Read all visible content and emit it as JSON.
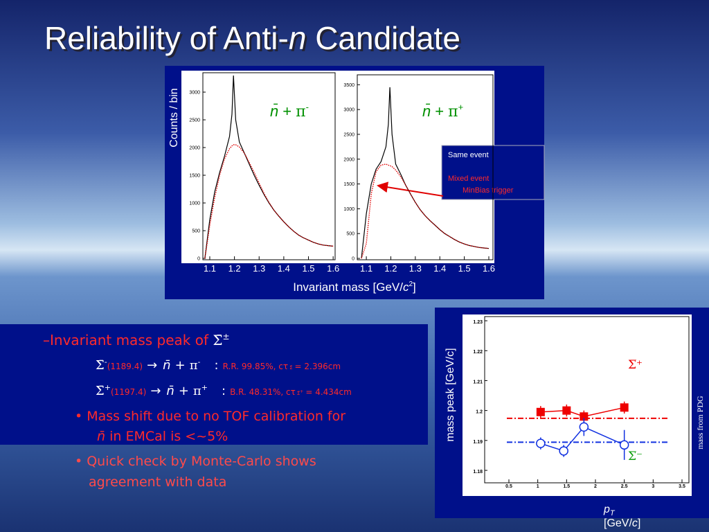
{
  "title": {
    "before": "Reliability of Anti-",
    "italic": "n",
    "after": " Candidate"
  },
  "figure_labels": {
    "y_label": "Counts / bin",
    "x_label": {
      "before": "Invariant mass [GeV/",
      "c": "c",
      "sup": "2",
      "after": "]"
    },
    "peak_y_label": "mass peak [GeV/c]",
    "pdg_label": "mass from PDG",
    "peak_x_label": {
      "p": "p",
      "sub": "T",
      "before": "[GeV/",
      "c": "c",
      "after": "]"
    }
  },
  "chart_data": [
    {
      "type": "line",
      "annotation": {
        "n": "n̄",
        "plus": "+",
        "pi": "π",
        "sup": "-"
      },
      "x": [
        1.08,
        1.1,
        1.12,
        1.14,
        1.16,
        1.18,
        1.19,
        1.196,
        1.205,
        1.22,
        1.24,
        1.26,
        1.28,
        1.3,
        1.32,
        1.34,
        1.36,
        1.38,
        1.4,
        1.42,
        1.44,
        1.46,
        1.48,
        1.5,
        1.52,
        1.54,
        1.56,
        1.58,
        1.6
      ],
      "series": [
        {
          "color": "#000000",
          "line_style": "solid",
          "values": [
            0,
            700,
            1200,
            1550,
            1850,
            2200,
            2600,
            3300,
            2500,
            2100,
            1900,
            1700,
            1500,
            1320,
            1150,
            1000,
            870,
            760,
            660,
            570,
            490,
            420,
            370,
            330,
            290,
            260,
            240,
            230,
            220
          ]
        },
        {
          "color": "#e00000",
          "line_style": "dotted",
          "values": [
            0,
            600,
            1100,
            1500,
            1800,
            1980,
            2030,
            2050,
            2050,
            2010,
            1900,
            1730,
            1550,
            1360,
            1170,
            1010,
            870,
            760,
            660,
            570,
            490,
            420,
            370,
            330,
            290,
            260,
            240,
            230,
            220
          ]
        }
      ],
      "xlim": [
        1.072,
        1.608
      ],
      "xticks": [
        1.1,
        1.2,
        1.3,
        1.4,
        1.5,
        1.6
      ],
      "ylim": [
        0,
        3350
      ],
      "yticks": [
        0,
        500,
        1000,
        1500,
        2000,
        2500,
        3000
      ]
    },
    {
      "type": "line",
      "annotation": {
        "n": "n̄",
        "plus": "+",
        "pi": "π",
        "sup": "+"
      },
      "legend_note": "MinBias trigger",
      "x": [
        1.08,
        1.1,
        1.12,
        1.14,
        1.16,
        1.18,
        1.19,
        1.196,
        1.205,
        1.22,
        1.24,
        1.26,
        1.28,
        1.3,
        1.32,
        1.34,
        1.36,
        1.38,
        1.4,
        1.42,
        1.44,
        1.46,
        1.48,
        1.5,
        1.52,
        1.54,
        1.56,
        1.58,
        1.6
      ],
      "series": [
        {
          "name": "Same event",
          "color": "#000000",
          "line_style": "solid",
          "values": [
            0,
            900,
            1500,
            1800,
            1950,
            2250,
            2700,
            3450,
            2500,
            1900,
            1700,
            1480,
            1300,
            1130,
            980,
            860,
            760,
            670,
            580,
            500,
            440,
            380,
            330,
            290,
            260,
            240,
            220,
            210,
            200
          ]
        },
        {
          "name": "Mixed event",
          "color": "#e00000",
          "line_style": "dotted",
          "values": [
            0,
            300,
            1300,
            1750,
            1880,
            1900,
            1880,
            1870,
            1850,
            1780,
            1650,
            1480,
            1300,
            1130,
            980,
            860,
            760,
            670,
            580,
            500,
            440,
            380,
            330,
            290,
            260,
            240,
            220,
            210,
            200
          ]
        }
      ],
      "xlim": [
        1.063,
        1.617
      ],
      "xticks": [
        1.1,
        1.2,
        1.3,
        1.4,
        1.5,
        1.6
      ],
      "ylim": [
        0,
        3700
      ],
      "yticks": [
        0,
        500,
        1000,
        1500,
        2000,
        2500,
        3000,
        3500
      ]
    },
    {
      "type": "scatter",
      "series": [
        {
          "name": "Σ̅⁺",
          "color": "#ee0000",
          "marker": "square",
          "x": [
            1.05,
            1.5,
            1.8,
            2.5
          ],
          "values": [
            1.1995,
            1.2,
            1.198,
            1.201
          ],
          "errors": [
            0.002,
            0.002,
            0.002,
            0.002
          ]
        },
        {
          "name": "Σ̅⁻",
          "color": "#1030e0",
          "marker": "circle",
          "x": [
            1.05,
            1.45,
            1.8,
            2.5
          ],
          "values": [
            1.189,
            1.1865,
            1.1945,
            1.1885
          ],
          "errors": [
            0.002,
            0.002,
            0.003,
            0.005
          ]
        }
      ],
      "reference_lines": [
        {
          "value": 1.1974,
          "color": "#ee0000"
        },
        {
          "value": 1.1894,
          "color": "#1030e0"
        }
      ],
      "xlim": [
        0.08,
        3.62
      ],
      "xticks": [
        0.5,
        1,
        1.5,
        2,
        2.5,
        3,
        3.5
      ],
      "ylim": [
        1.1763,
        1.2314
      ],
      "yticks": [
        1.18,
        1.19,
        1.2,
        1.21,
        1.22,
        1.23
      ]
    }
  ],
  "bullets": [
    {
      "dash": "–",
      "text": "Invariant mass peak of ",
      "symbol": "Σ̄",
      "sup": "±"
    },
    {
      "symbol": "Σ̄",
      "sup": "-",
      "mass": "(1189.4)",
      "arrow": "→",
      "n": "n̄",
      "plus": "+",
      "pi": "π",
      "pi_sup": "-",
      "colon": ":",
      "br": "R.R. 99.85%, cτ",
      "ctau_symbol": "Σ̄",
      "ctau": "= 2.396cm"
    },
    {
      "symbol": "Σ̄",
      "sup": "+",
      "mass": "(1197.4)",
      "arrow": "→",
      "n": "n̄",
      "plus": "+",
      "pi": "π",
      "pi_sup": "+",
      "colon": ":",
      "br": "B.R. 48.31%, cτ",
      "ctau_symbol": "Σ̄",
      "ctau_sup": "+",
      "ctau": "= 4.434cm"
    },
    {
      "marker": "•",
      "line1": "Mass shift due to no TOF calibration for",
      "n": "n̄",
      "line2": " in EMCal is <~5%"
    },
    {
      "marker": "•",
      "line1": "Quick check by Monte-Carlo shows",
      "line2": "agreement with data"
    }
  ]
}
